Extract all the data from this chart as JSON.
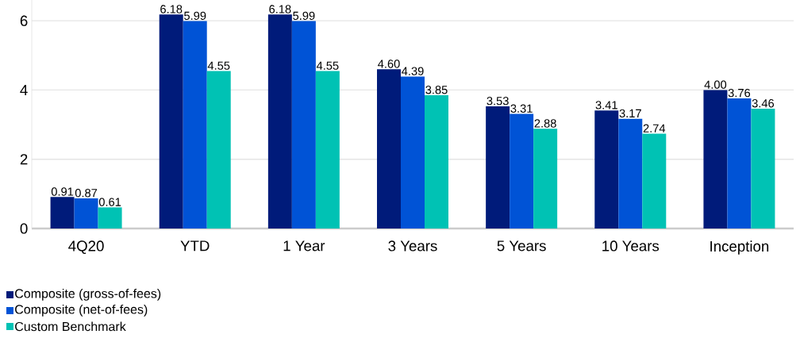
{
  "chart_data": {
    "type": "bar",
    "categories": [
      "4Q20",
      "YTD",
      "1 Year",
      "3 Years",
      "5 Years",
      "10 Years",
      "Inception"
    ],
    "series": [
      {
        "name": "Composite (gross-of-fees)",
        "color": "#001b7a",
        "values": [
          0.91,
          6.18,
          6.18,
          4.6,
          3.53,
          3.41,
          4.0
        ],
        "value_labels": [
          "0.91",
          "6.18",
          "6.18",
          "4.60",
          "3.53",
          "3.41",
          "4.00"
        ]
      },
      {
        "name": "Composite (net-of-fees)",
        "color": "#0053d6",
        "values": [
          0.87,
          5.99,
          5.99,
          4.39,
          3.31,
          3.17,
          3.76
        ],
        "value_labels": [
          "0.87",
          "5.99",
          "5.99",
          "4.39",
          "3.31",
          "3.17",
          "3.76"
        ]
      },
      {
        "name": "Custom Benchmark",
        "color": "#00c2b4",
        "values": [
          0.61,
          4.55,
          4.55,
          3.85,
          2.88,
          2.74,
          3.46
        ],
        "value_labels": [
          "0.61",
          "4.55",
          "4.55",
          "3.85",
          "2.88",
          "2.74",
          "3.46"
        ]
      }
    ],
    "ylim": [
      0,
      6.6
    ],
    "yticks": [
      0,
      2,
      4,
      6
    ],
    "grid": "y",
    "legend": "bottom left"
  }
}
